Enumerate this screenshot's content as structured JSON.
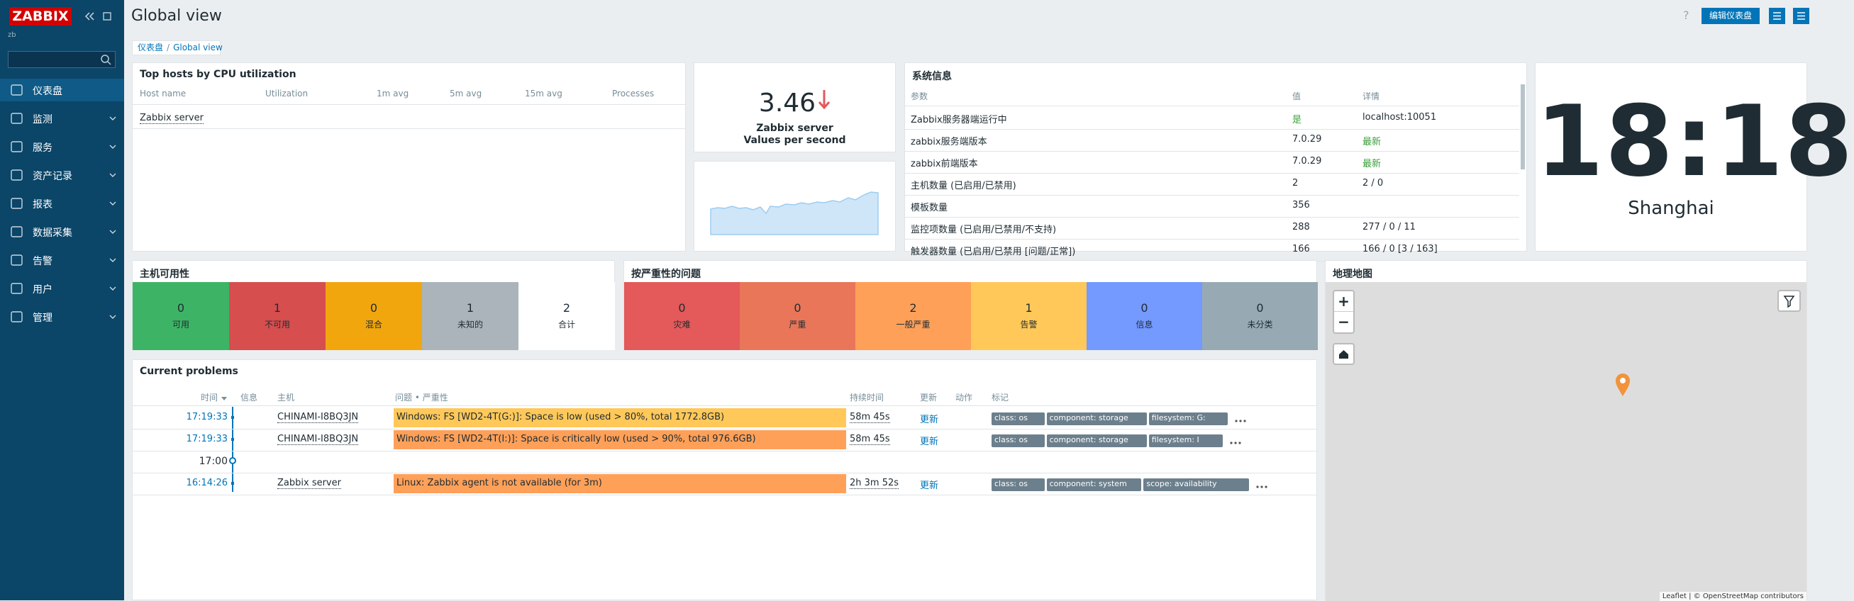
{
  "sidebar": {
    "logo": "ZABBIX",
    "server": "zb",
    "menu": [
      "仪表盘",
      "监测",
      "服务",
      "资产记录",
      "报表",
      "数据采集",
      "告警",
      "用户",
      "管理"
    ]
  },
  "header": {
    "title": "Global view",
    "help": "?",
    "edit_button": "编辑仪表盘",
    "breadcrumb": [
      "仪表盘",
      "/",
      "Global view"
    ]
  },
  "top_hosts": {
    "title": "Top hosts by CPU utilization",
    "columns": [
      "Host name",
      "Utilization",
      "1m avg",
      "5m avg",
      "15m avg",
      "Processes"
    ],
    "rows": [
      [
        "Zabbix server"
      ]
    ]
  },
  "item_value": {
    "value": "3.46",
    "host": "Zabbix server",
    "label": "Values per second"
  },
  "system_info": {
    "title": "系统信息",
    "columns": [
      "参数",
      "值",
      "详情"
    ],
    "rows": [
      {
        "param": "Zabbix服务器端运行中",
        "value": "是",
        "value_color": "#3b9e3b",
        "details": "localhost:10051"
      },
      {
        "param": "zabbix服务端版本",
        "value": "7.0.29",
        "details": "最新",
        "details_color": "#3b9e3b"
      },
      {
        "param": "zabbix前端版本",
        "value": "7.0.29",
        "details": "最新",
        "details_color": "#3b9e3b"
      },
      {
        "param": "主机数量 (已启用/已禁用)",
        "value": "2",
        "details": "2 / 0"
      },
      {
        "param": "模板数量",
        "value": "356"
      },
      {
        "param": "监控项数量 (已启用/已禁用/不支持)",
        "value": "288",
        "details": "277 / 0 / 11"
      },
      {
        "param": "触发器数量 (已启用/已禁用 [问题/正常])",
        "value": "166",
        "details": "166 / 0 [3 / 163]"
      }
    ]
  },
  "clock": {
    "time": "18:18",
    "zone": "Shanghai"
  },
  "host_availability": {
    "title": "主机可用性",
    "cells": [
      {
        "count": "0",
        "label": "可用",
        "color": "#3db465"
      },
      {
        "count": "1",
        "label": "不可用",
        "color": "#d64e4e"
      },
      {
        "count": "0",
        "label": "混合",
        "color": "#f2a60e"
      },
      {
        "count": "1",
        "label": "未知的",
        "color": "#aab4ba"
      },
      {
        "count": "2",
        "label": "合计",
        "color": "#ffffff"
      }
    ]
  },
  "problems_by_severity": {
    "title": "按严重性的问题",
    "cells": [
      {
        "count": "0",
        "label": "灾难",
        "color": "#e45959"
      },
      {
        "count": "0",
        "label": "严重",
        "color": "#e97659"
      },
      {
        "count": "2",
        "label": "一般严重",
        "color": "#ffa059"
      },
      {
        "count": "1",
        "label": "告警",
        "color": "#ffc859"
      },
      {
        "count": "0",
        "label": "信息",
        "color": "#7499ff"
      },
      {
        "count": "0",
        "label": "未分类",
        "color": "#97aab3"
      }
    ]
  },
  "geomap": {
    "title": "地理地图",
    "zoom_in": "+",
    "zoom_out": "−",
    "attribution": "Leaflet | © OpenStreetMap contributors"
  },
  "current_problems": {
    "title": "Current problems",
    "columns": [
      "时间",
      "信息",
      "主机",
      "问题 • 严重性",
      "持续时间",
      "更新",
      "动作",
      "标记"
    ],
    "time_marker": "17:00",
    "rows": [
      {
        "time": "17:19:33",
        "host": "CHINAMI-I8BQ3JN",
        "problem": "Windows: FS [WD2-4T(G:)]: Space is low (used > 80%, total 1772.8GB)",
        "color": "#ffc859",
        "duration": "58m 45s",
        "update": "更新",
        "tags": [
          "class: os",
          "component: storage",
          "filesystem: G:"
        ]
      },
      {
        "time": "17:19:33",
        "host": "CHINAMI-I8BQ3JN",
        "problem": "Windows: FS [WD2-4T(I:)]: Space is critically low (used > 90%, total 976.6GB)",
        "color": "#ffa059",
        "duration": "58m 45s",
        "update": "更新",
        "tags": [
          "class: os",
          "component: storage",
          "filesystem: I"
        ]
      },
      {
        "time": "16:14:26",
        "host": "Zabbix server",
        "problem": "Linux: Zabbix agent is not available (for 3m)",
        "color": "#ffa059",
        "duration": "2h 3m 52s",
        "update": "更新",
        "tags": [
          "class: os",
          "component: system",
          "scope: availability"
        ]
      }
    ]
  }
}
